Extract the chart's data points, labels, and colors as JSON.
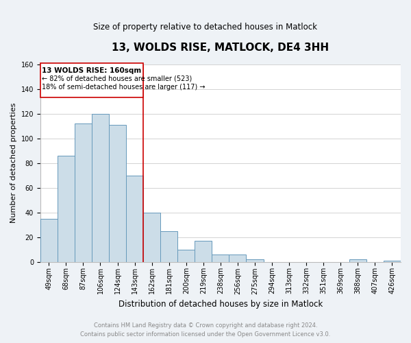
{
  "title": "13, WOLDS RISE, MATLOCK, DE4 3HH",
  "subtitle": "Size of property relative to detached houses in Matlock",
  "xlabel": "Distribution of detached houses by size in Matlock",
  "ylabel": "Number of detached properties",
  "bin_labels": [
    "49sqm",
    "68sqm",
    "87sqm",
    "106sqm",
    "124sqm",
    "143sqm",
    "162sqm",
    "181sqm",
    "200sqm",
    "219sqm",
    "238sqm",
    "256sqm",
    "275sqm",
    "294sqm",
    "313sqm",
    "332sqm",
    "351sqm",
    "369sqm",
    "388sqm",
    "407sqm",
    "426sqm"
  ],
  "bar_values": [
    35,
    86,
    112,
    120,
    111,
    70,
    40,
    25,
    10,
    17,
    6,
    6,
    2,
    0,
    0,
    0,
    0,
    0,
    2,
    0,
    1
  ],
  "bar_color": "#ccdde8",
  "bar_edge_color": "#6699bb",
  "ylim": [
    0,
    160
  ],
  "yticks": [
    0,
    20,
    40,
    60,
    80,
    100,
    120,
    140,
    160
  ],
  "marker_bin_index": 6,
  "marker_line_color": "#cc0000",
  "annotation_text_line1": "13 WOLDS RISE: 160sqm",
  "annotation_text_line2": "← 82% of detached houses are smaller (523)",
  "annotation_text_line3": "18% of semi-detached houses are larger (117) →",
  "annotation_box_facecolor": "#ffffff",
  "annotation_box_edgecolor": "#cc0000",
  "footer_line1": "Contains HM Land Registry data © Crown copyright and database right 2024.",
  "footer_line2": "Contains public sector information licensed under the Open Government Licence v3.0.",
  "background_color": "#eef2f6",
  "plot_bg_color": "#ffffff",
  "grid_color": "#cccccc",
  "title_fontsize": 11,
  "subtitle_fontsize": 8.5,
  "xlabel_fontsize": 8.5,
  "ylabel_fontsize": 8,
  "tick_fontsize": 7,
  "footer_fontsize": 6,
  "footer_color": "#888888"
}
